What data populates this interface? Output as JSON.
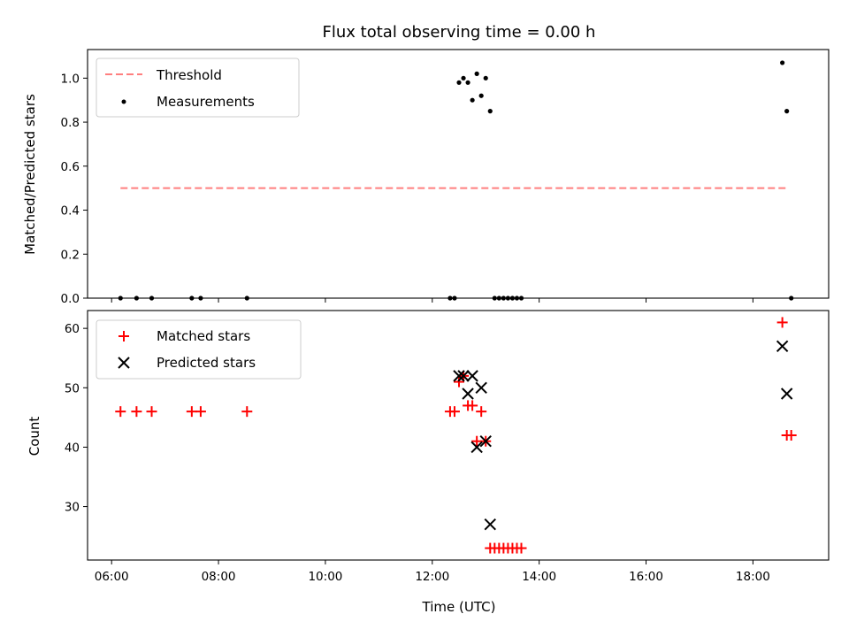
{
  "chart_data": [
    {
      "type": "scatter",
      "title": "Flux total observing time = 0.00 h",
      "ylabel": "Matched/Predicted stars",
      "ylim": [
        0,
        1.13
      ],
      "yticks": [
        0.0,
        0.2,
        0.4,
        0.6,
        0.8,
        1.0
      ],
      "ytick_labels": [
        "0.0",
        "0.2",
        "0.4",
        "0.6",
        "0.8",
        "1.0"
      ],
      "xlim": [
        "05:33",
        "19:25"
      ],
      "threshold": {
        "name": "Threshold",
        "y": 0.5,
        "x_start": "06:10",
        "x_end": "18:40",
        "color": "#ff7f7f",
        "style": "dashed"
      },
      "series": [
        {
          "name": "Measurements",
          "color": "#000000",
          "marker": "dot",
          "x": [
            "06:10",
            "06:28",
            "06:45",
            "07:30",
            "07:40",
            "08:32",
            "12:20",
            "12:25",
            "12:30",
            "12:35",
            "12:40",
            "12:45",
            "12:50",
            "12:55",
            "13:00",
            "13:05",
            "13:10",
            "13:15",
            "13:20",
            "13:25",
            "13:30",
            "13:35",
            "13:40",
            "18:33",
            "18:38",
            "18:43"
          ],
          "y": [
            0,
            0,
            0,
            0,
            0,
            0,
            0,
            0,
            0.98,
            1.0,
            0.98,
            0.9,
            1.02,
            0.92,
            1.0,
            0.85,
            0,
            0,
            0,
            0,
            0,
            0,
            0,
            1.07,
            0.85,
            0
          ]
        }
      ],
      "legend": {
        "position": "top-left",
        "entries": [
          "Threshold",
          "Measurements"
        ]
      }
    },
    {
      "type": "scatter",
      "xlabel": "Time (UTC)",
      "ylabel": "Count",
      "ylim": [
        21,
        63
      ],
      "yticks": [
        30,
        40,
        50,
        60
      ],
      "ytick_labels": [
        "30",
        "40",
        "50",
        "60"
      ],
      "xlim": [
        "05:33",
        "19:25"
      ],
      "xticks": [
        "06:00",
        "08:00",
        "10:00",
        "12:00",
        "14:00",
        "16:00",
        "18:00"
      ],
      "series": [
        {
          "name": "Matched stars",
          "color": "#ff0000",
          "marker": "plus",
          "x": [
            "06:10",
            "06:28",
            "06:45",
            "07:30",
            "07:40",
            "08:32",
            "12:20",
            "12:25",
            "12:30",
            "12:35",
            "12:40",
            "12:45",
            "12:50",
            "12:55",
            "13:00",
            "13:05",
            "13:10",
            "13:15",
            "13:20",
            "13:25",
            "13:30",
            "13:35",
            "13:40",
            "18:33",
            "18:38",
            "18:43"
          ],
          "y": [
            46,
            46,
            46,
            46,
            46,
            46,
            46,
            46,
            51,
            52,
            47,
            47,
            41,
            46,
            41,
            23,
            23,
            23,
            23,
            23,
            23,
            23,
            23,
            61,
            42,
            42
          ]
        },
        {
          "name": "Predicted stars",
          "color": "#000000",
          "marker": "x",
          "x": [
            "12:30",
            "12:35",
            "12:40",
            "12:45",
            "12:50",
            "12:55",
            "13:00",
            "13:05",
            "18:33",
            "18:38"
          ],
          "y": [
            52,
            52,
            49,
            52,
            40,
            50,
            41,
            27,
            57,
            49
          ]
        }
      ],
      "legend": {
        "position": "top-left",
        "entries": [
          "Matched stars",
          "Predicted stars"
        ]
      }
    }
  ]
}
